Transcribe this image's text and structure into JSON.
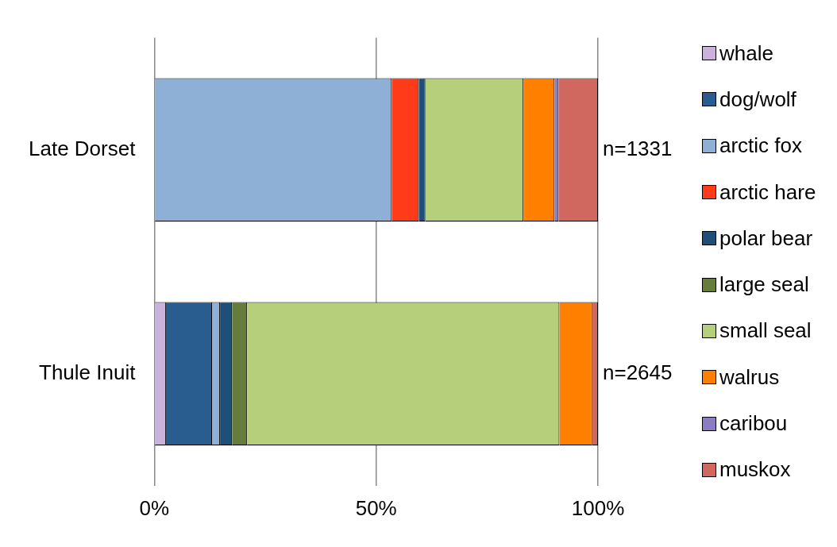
{
  "chart_data": {
    "type": "bar",
    "orientation": "horizontal",
    "stacked": true,
    "categories": [
      "Late Dorset",
      "Thule Inuit"
    ],
    "series": [
      {
        "name": "whale",
        "color": "#c9b3dc",
        "values": [
          0,
          2.6
        ]
      },
      {
        "name": "dog/wolf",
        "color": "#2a5d8f",
        "values": [
          0,
          10.4
        ]
      },
      {
        "name": "arctic fox",
        "color": "#8fb0d6",
        "values": [
          53.5,
          1.8
        ]
      },
      {
        "name": "arctic hare",
        "color": "#ff3b1a",
        "values": [
          6.1,
          0
        ]
      },
      {
        "name": "polar bear",
        "color": "#1f4e79",
        "values": [
          1.5,
          2.7
        ]
      },
      {
        "name": "large seal",
        "color": "#667c3a",
        "values": [
          0,
          3.4
        ]
      },
      {
        "name": "small seal",
        "color": "#b5cf7a",
        "values": [
          22.1,
          70.4
        ]
      },
      {
        "name": "walrus",
        "color": "#ff8000",
        "values": [
          7.0,
          7.4
        ]
      },
      {
        "name": "caribou",
        "color": "#8e7cc3",
        "values": [
          0.9,
          0
        ]
      },
      {
        "name": "muskox",
        "color": "#d06860",
        "values": [
          8.9,
          1.3
        ]
      }
    ],
    "xlim": [
      0,
      100
    ],
    "xticks": [
      {
        "value": 0,
        "label": "0%"
      },
      {
        "value": 50,
        "label": "50%"
      },
      {
        "value": 100,
        "label": "100%"
      }
    ],
    "grid": "x",
    "legend": "right",
    "annotations": [
      {
        "text": "n=1331",
        "x": 100,
        "y": "Late Dorset"
      },
      {
        "text": "n=2645",
        "x": 100,
        "y": "Thule Inuit"
      }
    ]
  }
}
